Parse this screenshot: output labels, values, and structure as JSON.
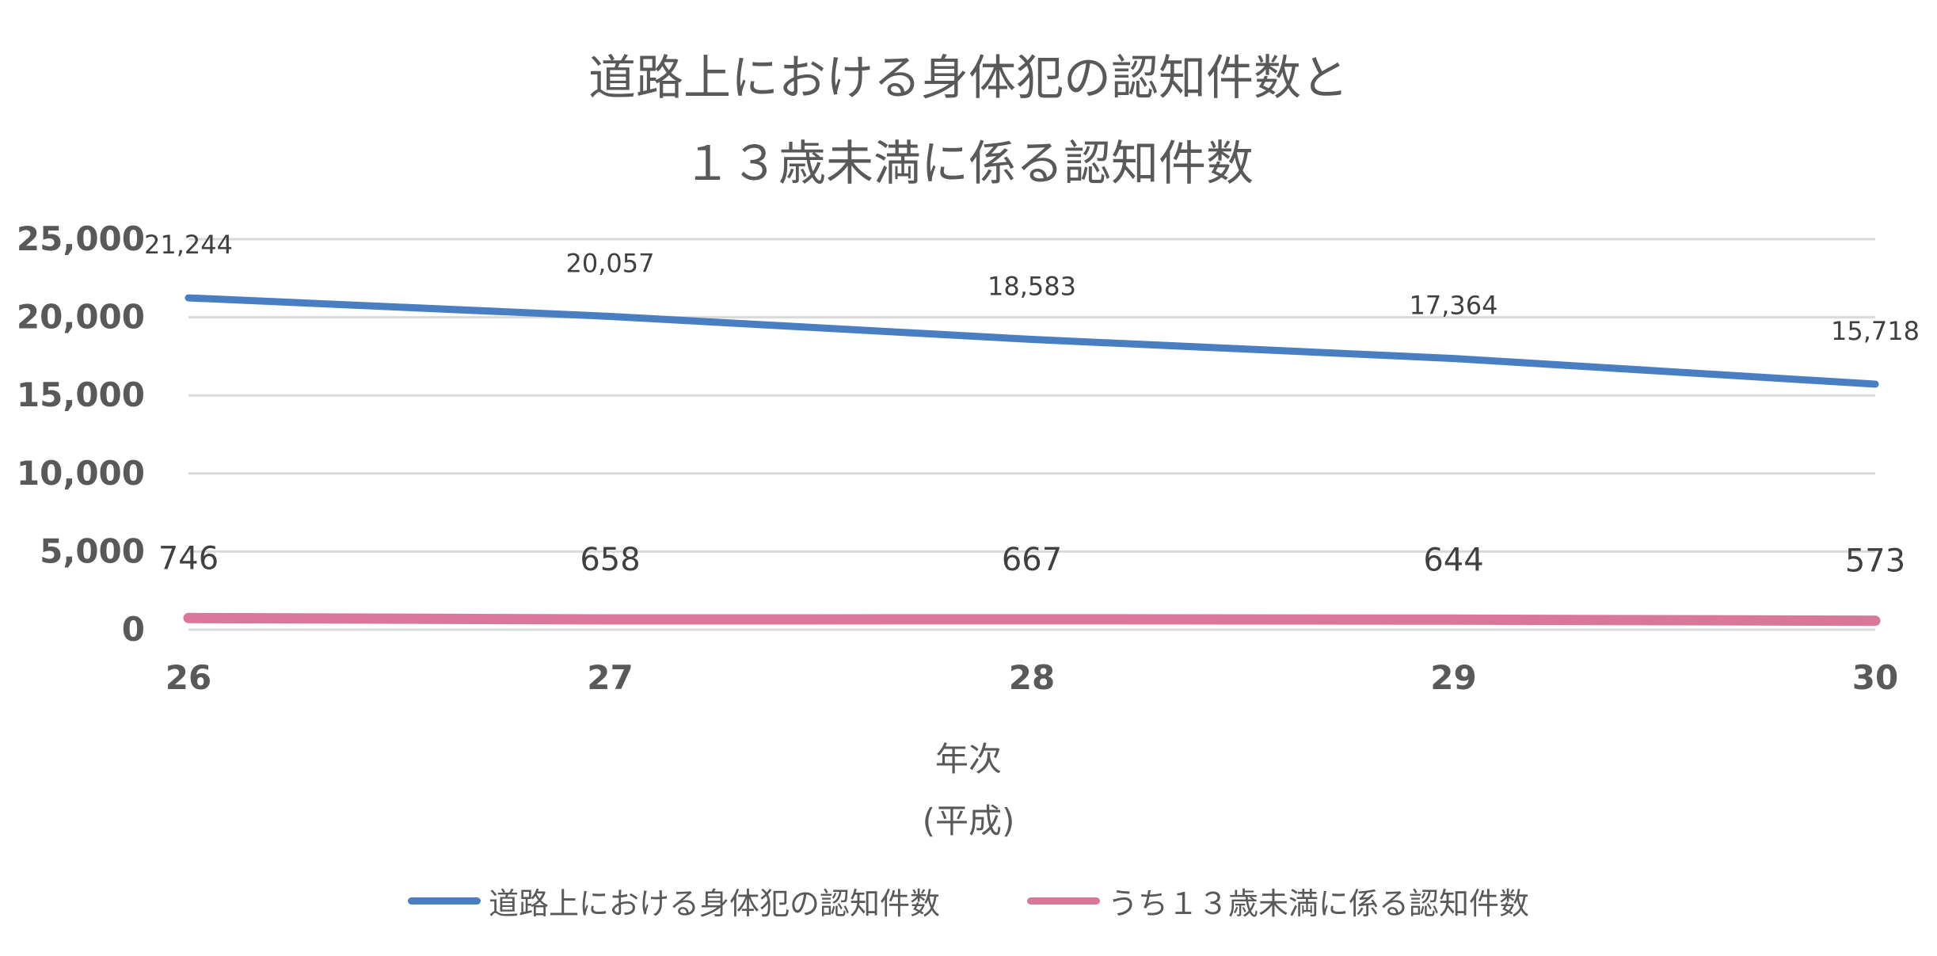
{
  "chart_data": {
    "type": "line",
    "title_lines": [
      "道路上における身体犯の認知件数と",
      "１３歳未満に係る認知件数"
    ],
    "xlabel_lines": [
      "年次",
      "(平成)"
    ],
    "ylabel": "",
    "categories": [
      "26",
      "27",
      "28",
      "29",
      "30"
    ],
    "ylim": [
      0,
      25000
    ],
    "yticks": [
      0,
      5000,
      10000,
      15000,
      20000,
      25000
    ],
    "ytick_labels": [
      "0",
      "5,000",
      "10,000",
      "15,000",
      "20,000",
      "25,000"
    ],
    "grid": true,
    "legend_position": "bottom",
    "series": [
      {
        "name": "道路上における身体犯の認知件数",
        "color": "#4A7EC2",
        "values": [
          21244,
          20057,
          18583,
          17364,
          15718
        ],
        "labels": [
          "21,244",
          "20,057",
          "18,583",
          "17,364",
          "15,718"
        ]
      },
      {
        "name": "うち１３歳未満に係る認知件数",
        "color": "#D9779A",
        "values": [
          746,
          658,
          667,
          644,
          573
        ],
        "labels": [
          "746",
          "658",
          "667",
          "644",
          "573"
        ]
      }
    ]
  }
}
